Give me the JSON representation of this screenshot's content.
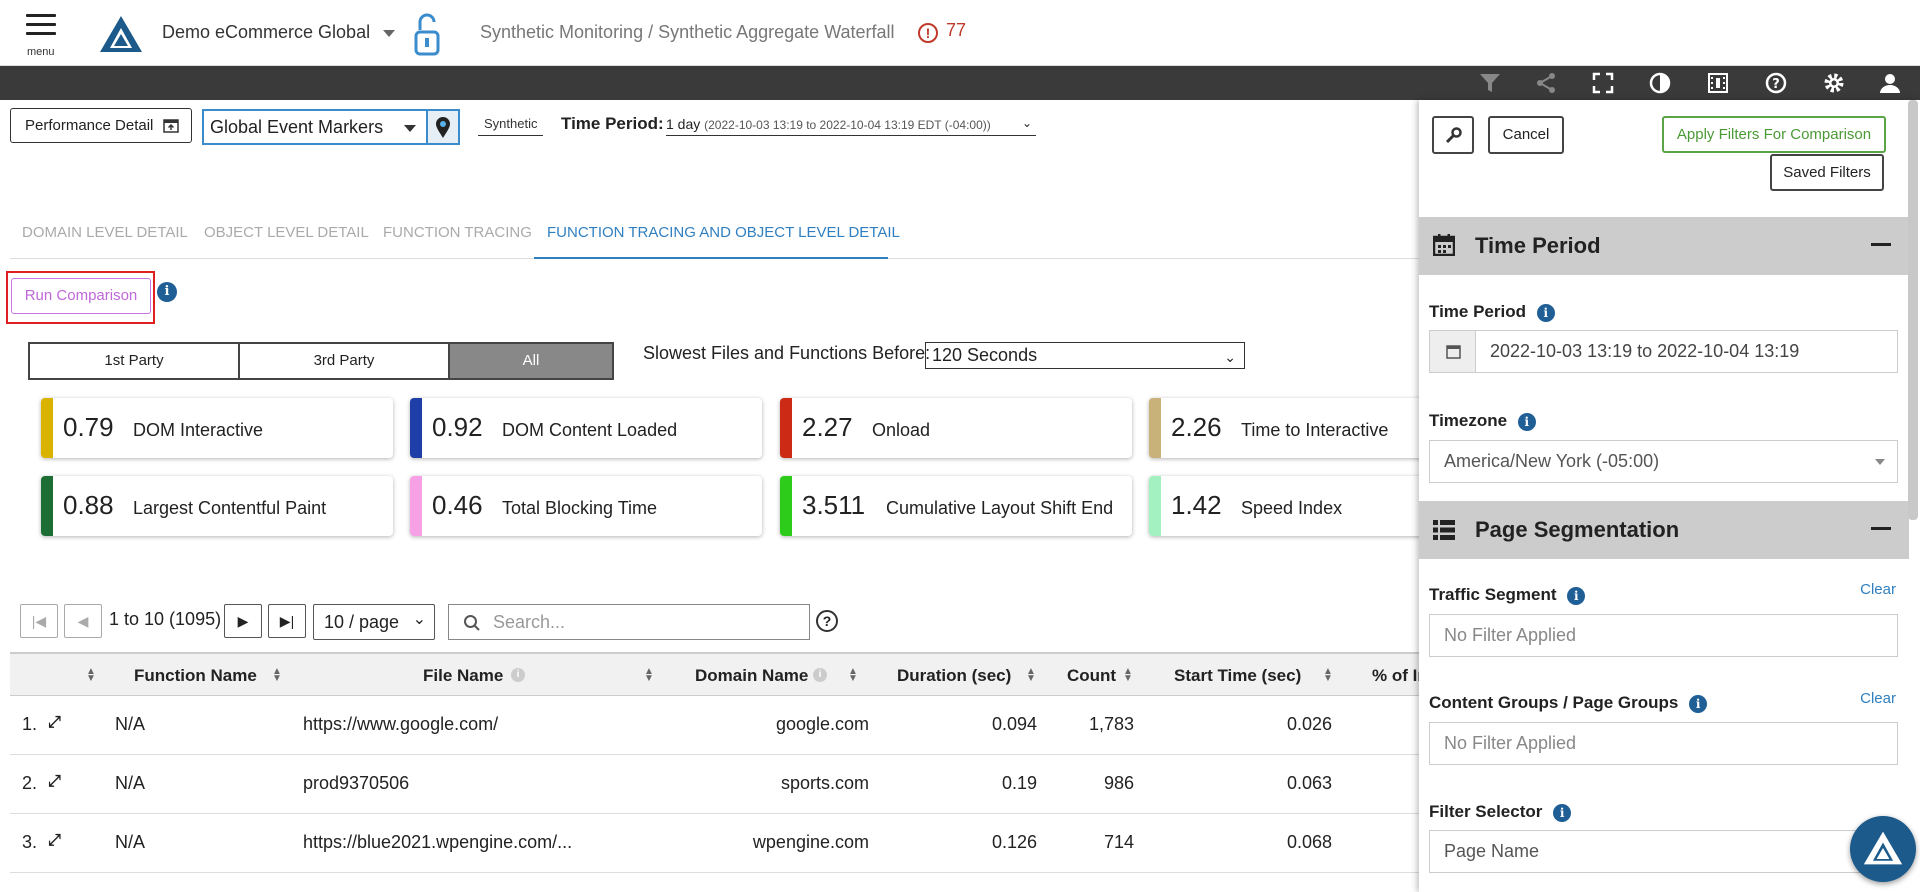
{
  "header": {
    "menu_label": "menu",
    "app_title": "Demo eCommerce Global",
    "breadcrumb": "Synthetic Monitoring / Synthetic Aggregate Waterfall",
    "alert_count": "77",
    "alert_symbol": "!"
  },
  "toolbar": {
    "icons": [
      "filter-icon",
      "share-icon",
      "fullscreen-icon",
      "contrast-icon",
      "film-icon",
      "help-icon",
      "gear-icon",
      "user-icon"
    ]
  },
  "controls": {
    "performance_detail": "Performance Detail",
    "event_markers": "Global Event Markers",
    "synthetic": "Synthetic",
    "time_period_label": "Time Period:",
    "time_period_value": "1 day",
    "time_period_range": "(2022-10-03 13:19 to 2022-10-04 13:19 EDT (-04:00))"
  },
  "tabs": [
    "DOMAIN LEVEL DETAIL",
    "OBJECT LEVEL DETAIL",
    "FUNCTION TRACING",
    "FUNCTION TRACING AND OBJECT LEVEL DETAIL"
  ],
  "run_comparison": "Run Comparison",
  "party": [
    "1st Party",
    "3rd Party",
    "All"
  ],
  "slowest_label": "Slowest Files and Functions Before:",
  "slowest_value": "120 Seconds",
  "metrics": [
    {
      "value": "0.79",
      "label": "DOM Interactive",
      "color": "#d9b300"
    },
    {
      "value": "0.92",
      "label": "DOM Content Loaded",
      "color": "#1e3fa8"
    },
    {
      "value": "2.27",
      "label": "Onload",
      "color": "#cc2a14"
    },
    {
      "value": "2.26",
      "label": "Time to Interactive",
      "color": "#c8b27a"
    },
    {
      "value": "0.88",
      "label": "Largest Contentful Paint",
      "color": "#1d6e35"
    },
    {
      "value": "0.46",
      "label": "Total Blocking Time",
      "color": "#f6a0e6"
    },
    {
      "value": "3.511",
      "label": "Cumulative Layout Shift End",
      "color": "#2ecc1a"
    },
    {
      "value": "1.42",
      "label": "Speed Index",
      "color": "#a3f0c0"
    }
  ],
  "pagination": {
    "info": "1 to 10 (1095)",
    "per_page": "10 / page",
    "search_placeholder": "Search..."
  },
  "table": {
    "headers": [
      "Function Name",
      "File Name",
      "Domain Name",
      "Duration (sec)",
      "Count",
      "Start Time (sec)",
      "% of In"
    ],
    "rows": [
      {
        "n": "1.",
        "func": "N/A",
        "file": "https://www.google.com/",
        "domain": "google.com",
        "duration": "0.094",
        "count": "1,783",
        "start": "0.026"
      },
      {
        "n": "2.",
        "func": "N/A",
        "file": "prod9370506",
        "domain": "sports.com",
        "duration": "0.19",
        "count": "986",
        "start": "0.063"
      },
      {
        "n": "3.",
        "func": "N/A",
        "file": "https://blue2021.wpengine.com/...",
        "domain": "wpengine.com",
        "duration": "0.126",
        "count": "714",
        "start": "0.068"
      }
    ]
  },
  "panel": {
    "cancel": "Cancel",
    "apply": "Apply Filters For Comparison",
    "saved": "Saved Filters",
    "time_section": "Time Period",
    "time_label": "Time Period",
    "time_value": "2022-10-03 13:19 to 2022-10-04 13:19",
    "timezone_label": "Timezone",
    "timezone_value": "America/New York (-05:00)",
    "seg_section": "Page Segmentation",
    "traffic_label": "Traffic Segment",
    "traffic_value": "No Filter Applied",
    "content_label": "Content Groups / Page Groups",
    "content_value": "No Filter Applied",
    "clear": "Clear",
    "filter_label": "Filter Selector",
    "filter_value": "Page Name"
  }
}
